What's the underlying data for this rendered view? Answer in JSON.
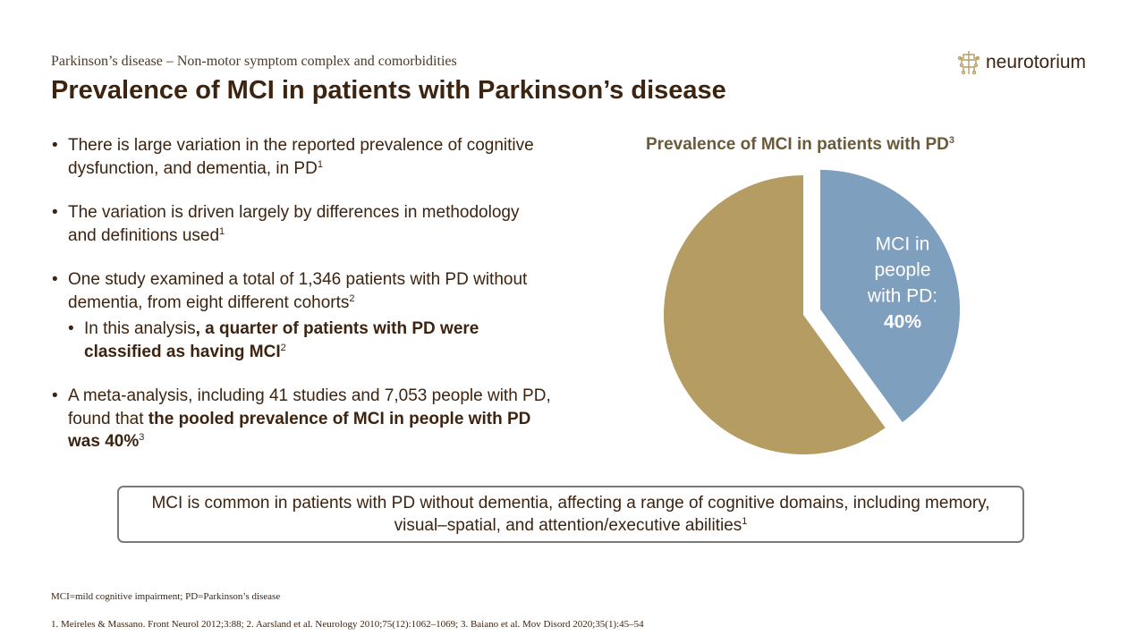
{
  "header": {
    "subtitle": "Parkinson’s disease – Non-motor symptom complex and comorbidities",
    "title": "Prevalence of MCI in patients with Parkinson’s disease",
    "logo_text": "neurotorium"
  },
  "bullets": [
    {
      "text": "There is large variation in the reported prevalence of cognitive dysfunction, and dementia, in PD",
      "sup": "1"
    },
    {
      "text": "The variation is driven largely by differences in methodology and definitions used",
      "sup": "1"
    },
    {
      "text": "One study examined a total of 1,346 patients with PD without dementia, from eight different cohorts",
      "sup": "2"
    },
    {
      "text_pre": "In this analysis",
      "text_bold": ", a quarter of patients with PD were classified as having MCI",
      "sup": "2"
    },
    {
      "text_pre": "A meta-analysis, including 41 studies and 7,053 people with PD, found that ",
      "text_bold": "the pooled prevalence of MCI in people with PD was 40%",
      "sup": "3"
    }
  ],
  "chart_title": {
    "text": "Prevalence of MCI in patients with PD",
    "sup": "3"
  },
  "chart_data": {
    "type": "pie",
    "title": "Prevalence of MCI in patients with PD",
    "slices": [
      {
        "label_lines": [
          "MCI in",
          "people",
          "with PD:"
        ],
        "value_label": "40%",
        "value": 40,
        "color": "#7f9fbf",
        "exploded": true
      },
      {
        "label_lines": [],
        "value_label": "",
        "value": 60,
        "color": "#b59c62",
        "exploded": false
      }
    ]
  },
  "callout": {
    "text": "MCI is common in patients with PD without dementia, affecting a range of cognitive domains, including memory, visual–spatial, and attention/executive abilities",
    "sup": "1"
  },
  "footnote": "MCI=mild cognitive impairment; PD=Parkinson’s disease",
  "references": "1. Meireles & Massano. Front Neurol 2012;3:88; 2. Aarsland et al. Neurology 2010;75(12):1062–1069; 3. Baiano et al. Mov Disord 2020;35(1):45–54",
  "colors": {
    "brand_brown": "#3d2410",
    "gold": "#b59c62",
    "blue": "#7f9fbf"
  }
}
